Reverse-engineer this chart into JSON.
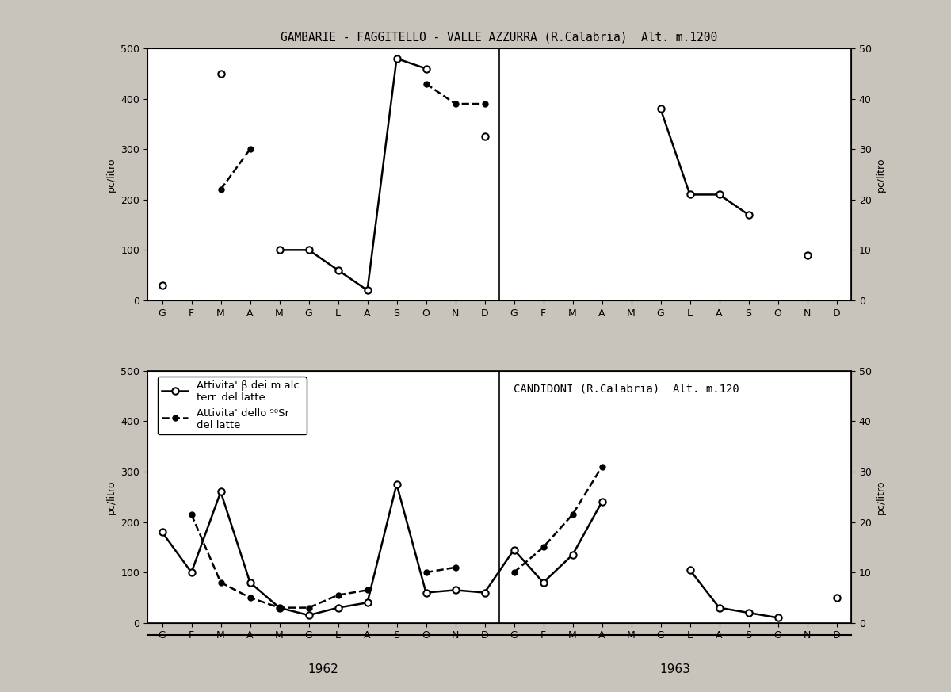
{
  "top_title": "GAMBARIE - FAGGITELLO - VALLE AZZURRA (R.Calabria)  Alt. m.1200",
  "bottom_title": "CANDIDONI (R.Calabria)  Alt. m.120",
  "months": [
    "G",
    "F",
    "M",
    "A",
    "M",
    "G",
    "L",
    "A",
    "S",
    "O",
    "N",
    "D",
    "G",
    "F",
    "M",
    "A",
    "M",
    "G",
    "L",
    "A",
    "S",
    "O",
    "N",
    "D"
  ],
  "year_labels": [
    "1962",
    "1963"
  ],
  "ylabel_left": "pc/litro",
  "ylabel_right": "pc/litro",
  "top_solid_1962": [
    30,
    null,
    450,
    null,
    100,
    100,
    60,
    20,
    480,
    460,
    null,
    325
  ],
  "top_solid_1963": [
    null,
    null,
    null,
    null,
    null,
    380,
    210,
    210,
    170,
    null,
    90,
    null
  ],
  "top_dashed_1962": [
    null,
    null,
    220,
    300,
    null,
    null,
    null,
    null,
    null,
    430,
    390,
    390
  ],
  "top_dashed_1963": [
    null,
    null,
    null,
    null,
    null,
    null,
    null,
    null,
    null,
    null,
    null,
    null
  ],
  "bot_solid_1962": [
    180,
    100,
    260,
    80,
    30,
    15,
    30,
    40,
    275,
    60,
    65,
    60
  ],
  "bot_solid_1963": [
    145,
    80,
    135,
    240,
    null,
    null,
    105,
    30,
    20,
    10,
    null,
    50
  ],
  "bot_dashed_1962": [
    null,
    215,
    80,
    50,
    30,
    30,
    55,
    65,
    null,
    100,
    110,
    null
  ],
  "bot_dashed_1963": [
    100,
    150,
    215,
    310,
    null,
    null,
    null,
    null,
    null,
    null,
    null,
    null
  ],
  "ylim_left": [
    0,
    500
  ],
  "ylim_right": [
    0,
    50
  ],
  "legend_solid": "Attivita' β dei m.alc.\nterr. del latte",
  "legend_dashed": "Attivita' dello ⁹⁰Sr\ndel latte",
  "fig_bg": "#c8c4bc",
  "box_bg": "#ffffff",
  "plot_bg": "#ffffff"
}
